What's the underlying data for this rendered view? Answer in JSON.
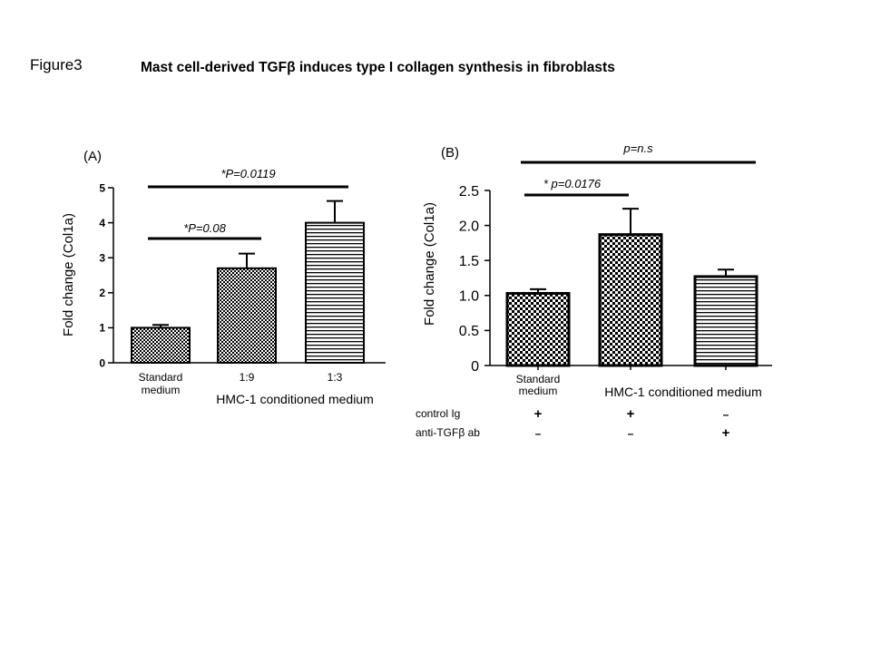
{
  "figure_label": "Figure3",
  "title": "Mast cell-derived TGFβ induces type I collagen synthesis in fibroblasts",
  "chart_data": [
    {
      "panel": "(A)",
      "type": "bar",
      "ylabel": "Fold change (Col1a)",
      "ylim": [
        0,
        5
      ],
      "yticks": [
        "0",
        "1",
        "2",
        "3",
        "4",
        "5"
      ],
      "categories": [
        {
          "lines": [
            "Standard",
            "medium"
          ]
        },
        {
          "lines": [
            "1:9"
          ]
        },
        {
          "lines": [
            "1:3"
          ]
        }
      ],
      "group_label": "HMC-1 conditioned medium",
      "values": [
        1.0,
        2.7,
        4.0
      ],
      "errors": [
        0.08,
        0.42,
        0.62
      ],
      "patterns": [
        "checker",
        "checker",
        "hlines"
      ],
      "significance": [
        {
          "from": 0,
          "to": 1,
          "label": "*P=0.08"
        },
        {
          "from": 0,
          "to": 2,
          "label": "*P=0.0119"
        }
      ]
    },
    {
      "panel": "(B)",
      "type": "bar",
      "ylabel": "Fold change (Col1a)",
      "ylim": [
        0,
        2.5
      ],
      "yticks": [
        "0",
        "0.5",
        "1.0",
        "1.5",
        "2.0",
        "2.5"
      ],
      "categories": [
        {
          "lines": [
            "Standard",
            "medium"
          ]
        },
        {
          "lines": []
        },
        {
          "lines": []
        }
      ],
      "group_label": "HMC-1 conditioned medium",
      "values": [
        1.03,
        1.87,
        1.27
      ],
      "errors": [
        0.06,
        0.37,
        0.1
      ],
      "patterns": [
        "checker",
        "checker",
        "hlines"
      ],
      "significance": [
        {
          "from": 0,
          "to": 1,
          "label": "* p=0.0176"
        },
        {
          "from": 0,
          "to": 2,
          "label": "p=n.s"
        }
      ],
      "treatment_rows": [
        {
          "label": "control Ig",
          "marks": [
            "+",
            "+",
            "–"
          ]
        },
        {
          "label": "anti-TGFβ  ab",
          "marks": [
            "–",
            "–",
            "+"
          ]
        }
      ]
    }
  ]
}
